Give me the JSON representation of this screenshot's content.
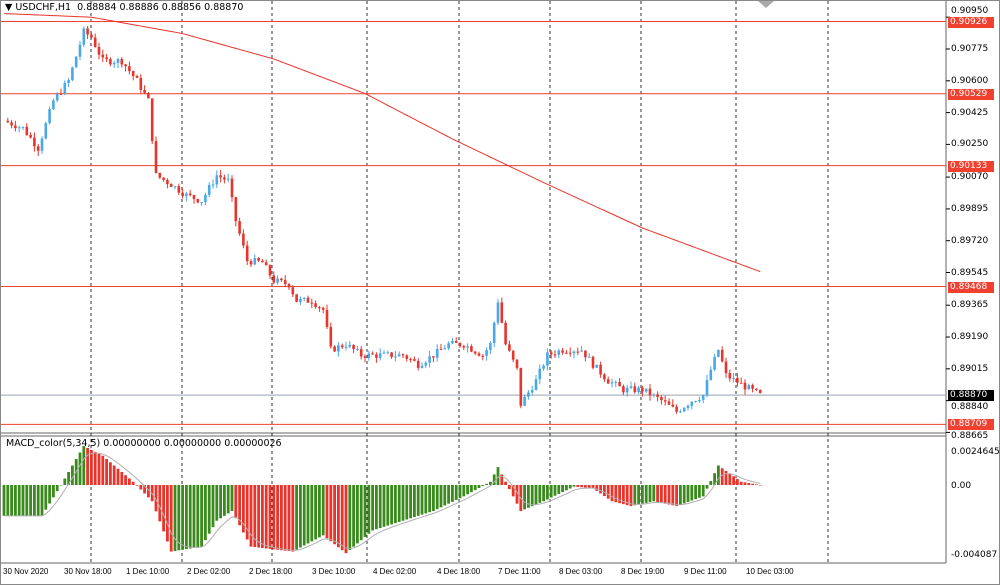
{
  "header": {
    "symbol": "USDCHF,H1",
    "open": "0.88884",
    "high": "0.88886",
    "low": "0.88856",
    "close": "0.88870"
  },
  "macd_header": {
    "name": "MACD_color(5,34,5)",
    "v1": "0.00000000",
    "v2": "0.00000000",
    "v3": "0.00000026"
  },
  "price_axis": {
    "ticks": [
      "0.90950",
      "0.90775",
      "0.90600",
      "0.90425",
      "0.90250",
      "0.90070",
      "0.89895",
      "0.89720",
      "0.89545",
      "0.89365",
      "0.89190",
      "0.89015",
      "0.88840",
      "0.88665"
    ],
    "levels": [
      "0.90926",
      "0.90529",
      "0.90133",
      "0.89468",
      "0.88709"
    ],
    "current": "0.88870"
  },
  "macd_axis": {
    "ticks": [
      "0.0024645",
      "0.00",
      "-0.004087"
    ]
  },
  "time_axis": [
    "30 Nov 2020",
    "30 Nov 18:00",
    "1 Dec 10:00",
    "2 Dec 02:00",
    "2 Dec 18:00",
    "3 Dec 10:00",
    "4 Dec 02:00",
    "4 Dec 18:00",
    "7 Dec 11:00",
    "8 Dec 03:00",
    "8 Dec 19:00",
    "9 Dec 11:00",
    "10 Dec 03:00"
  ],
  "colors": {
    "bull": "#4aa8e8",
    "bear": "#e8342a",
    "level": "#f04030",
    "ma": "#e8342a",
    "macd_up": "#3a8a1e",
    "macd_down": "#e8342a",
    "signal": "#b0b0b0"
  },
  "chart_data": {
    "type": "candlestick",
    "timeframe": "H1",
    "price_path": [
      [
        0,
        0.9038
      ],
      [
        5,
        0.9034
      ],
      [
        9,
        0.9023
      ],
      [
        13,
        0.9049
      ],
      [
        17,
        0.906
      ],
      [
        21,
        0.9087
      ],
      [
        23,
        0.9084
      ],
      [
        26,
        0.9071
      ],
      [
        31,
        0.9071
      ],
      [
        35,
        0.906
      ],
      [
        38,
        0.9049
      ],
      [
        40,
        0.9008
      ],
      [
        44,
        0.9003
      ],
      [
        48,
        0.8997
      ],
      [
        52,
        0.8994
      ],
      [
        56,
        0.9008
      ],
      [
        59,
        0.9005
      ],
      [
        61,
        0.8983
      ],
      [
        64,
        0.8961
      ],
      [
        68,
        0.896
      ],
      [
        71,
        0.895
      ],
      [
        75,
        0.8948
      ],
      [
        77,
        0.8939
      ],
      [
        81,
        0.8939
      ],
      [
        84,
        0.8934
      ],
      [
        86,
        0.8912
      ],
      [
        90,
        0.8915
      ],
      [
        94,
        0.8909
      ],
      [
        100,
        0.8909
      ],
      [
        105,
        0.8909
      ],
      [
        109,
        0.8904
      ],
      [
        113,
        0.8909
      ],
      [
        117,
        0.8915
      ],
      [
        121,
        0.8915
      ],
      [
        126,
        0.8909
      ],
      [
        128,
        0.8915
      ],
      [
        130,
        0.8939
      ],
      [
        132,
        0.8915
      ],
      [
        135,
        0.8901
      ],
      [
        136,
        0.8882
      ],
      [
        140,
        0.8895
      ],
      [
        143,
        0.8909
      ],
      [
        147,
        0.8912
      ],
      [
        152,
        0.8912
      ],
      [
        155,
        0.8904
      ],
      [
        159,
        0.8895
      ],
      [
        163,
        0.889
      ],
      [
        168,
        0.889
      ],
      [
        173,
        0.8884
      ],
      [
        177,
        0.8878
      ],
      [
        181,
        0.8884
      ],
      [
        184,
        0.8887
      ],
      [
        186,
        0.8901
      ],
      [
        188,
        0.8912
      ],
      [
        190,
        0.8898
      ],
      [
        194,
        0.8893
      ],
      [
        199,
        0.8887
      ]
    ],
    "ma_path": [
      [
        0,
        0.9097
      ],
      [
        23,
        0.9095
      ],
      [
        47,
        0.9086
      ],
      [
        71,
        0.9072
      ],
      [
        95,
        0.9053
      ],
      [
        118,
        0.9028
      ],
      [
        142,
        0.9004
      ],
      [
        168,
        0.8979
      ],
      [
        199,
        0.8955
      ]
    ],
    "macd_path": [
      [
        0,
        -0.0019
      ],
      [
        10,
        -0.0019
      ],
      [
        15,
        0.0
      ],
      [
        21,
        0.0024
      ],
      [
        26,
        0.0018
      ],
      [
        34,
        0.0002
      ],
      [
        39,
        -0.001
      ],
      [
        44,
        -0.0041
      ],
      [
        52,
        -0.0038
      ],
      [
        56,
        -0.0022
      ],
      [
        60,
        -0.0016
      ],
      [
        65,
        -0.0038
      ],
      [
        76,
        -0.0041
      ],
      [
        84,
        -0.0031
      ],
      [
        90,
        -0.0042
      ],
      [
        97,
        -0.0028
      ],
      [
        105,
        -0.0022
      ],
      [
        113,
        -0.0016
      ],
      [
        121,
        -0.0007
      ],
      [
        128,
        0.0002
      ],
      [
        130,
        0.0011
      ],
      [
        132,
        0.0002
      ],
      [
        136,
        -0.0016
      ],
      [
        142,
        -0.001
      ],
      [
        150,
        -0.0001
      ],
      [
        155,
        -0.0002
      ],
      [
        160,
        -0.001
      ],
      [
        165,
        -0.0013
      ],
      [
        171,
        -0.001
      ],
      [
        177,
        -0.0013
      ],
      [
        184,
        -0.0007
      ],
      [
        188,
        0.0012
      ],
      [
        194,
        0.0002
      ],
      [
        199,
        0.0
      ]
    ]
  }
}
